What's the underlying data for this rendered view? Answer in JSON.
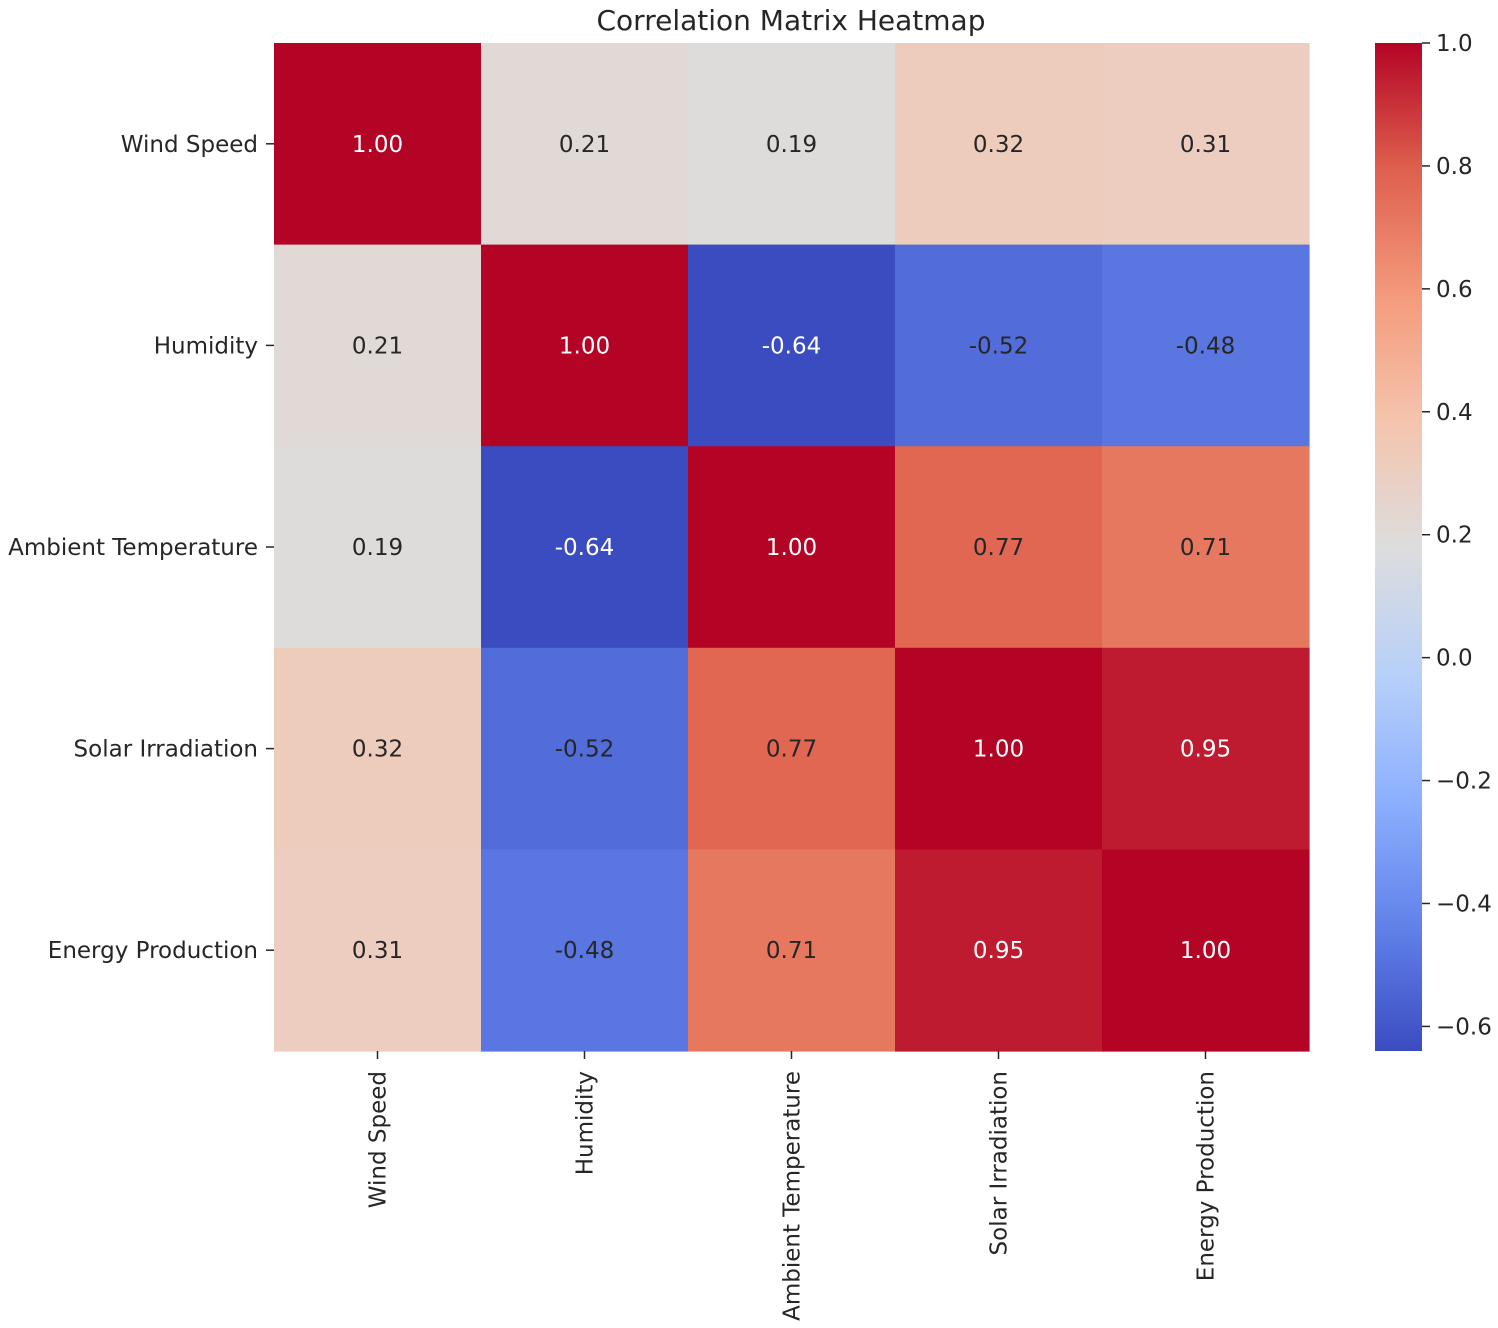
{
  "chart_data": {
    "type": "heatmap",
    "title": "Correlation Matrix Heatmap",
    "xlabel": "",
    "ylabel": "",
    "row_labels": [
      "Wind Speed",
      "Humidity",
      "Ambient Temperature",
      "Solar Irradiation",
      "Energy Production"
    ],
    "col_labels": [
      "Wind Speed",
      "Humidity",
      "Ambient Temperature",
      "Solar Irradiation",
      "Energy Production"
    ],
    "values": [
      [
        1.0,
        0.21,
        0.19,
        0.32,
        0.31
      ],
      [
        0.21,
        1.0,
        -0.64,
        -0.52,
        -0.48
      ],
      [
        0.19,
        -0.64,
        1.0,
        0.77,
        0.71
      ],
      [
        0.32,
        -0.52,
        0.77,
        1.0,
        0.95
      ],
      [
        0.31,
        -0.48,
        0.71,
        0.95,
        1.0
      ]
    ],
    "annotation_labels": [
      [
        "1.00",
        "0.21",
        "0.19",
        "0.32",
        "0.31"
      ],
      [
        "0.21",
        "1.00",
        "-0.64",
        "-0.52",
        "-0.48"
      ],
      [
        "0.19",
        "-0.64",
        "1.00",
        "0.77",
        "0.71"
      ],
      [
        "0.32",
        "-0.52",
        "0.77",
        "1.00",
        "0.95"
      ],
      [
        "0.31",
        "-0.48",
        "0.71",
        "0.95",
        "1.00"
      ]
    ],
    "colormap": "coolwarm",
    "color_range": [
      -0.64,
      1.0
    ],
    "colorbar": {
      "ticks": [
        1.0,
        0.8,
        0.6,
        0.4,
        0.2,
        0.0,
        -0.2,
        -0.4,
        -0.6
      ],
      "tick_labels": [
        "1.0",
        "0.8",
        "0.6",
        "0.4",
        "0.2",
        "0.0",
        "−0.2",
        "−0.4",
        "−0.6"
      ],
      "placement": "right"
    },
    "grid": false,
    "x_tick_rotation": "vertical"
  }
}
